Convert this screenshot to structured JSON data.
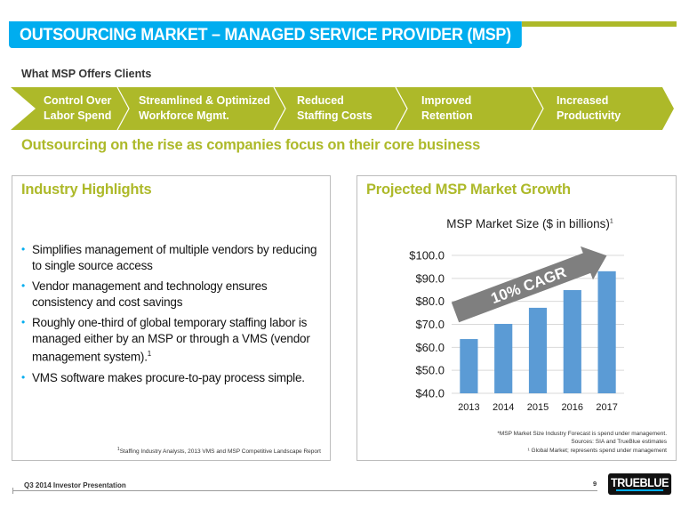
{
  "header": {
    "title": "OUTSOURCING MARKET – MANAGED SERVICE PROVIDER (MSP)"
  },
  "offers": {
    "label": "What MSP Offers Clients",
    "items": [
      {
        "line1": "Control Over",
        "line2": "Labor Spend"
      },
      {
        "line1": "Streamlined & Optimized",
        "line2": "Workforce Mgmt."
      },
      {
        "line1": "Reduced",
        "line2": "Staffing Costs"
      },
      {
        "line1": "Improved",
        "line2": "Retention"
      },
      {
        "line1": "Increased",
        "line2": "Productivity"
      }
    ]
  },
  "tagline": "Outsourcing on the rise as companies focus on their core business",
  "left_panel": {
    "title": "Industry Highlights",
    "bullets": [
      "Simplifies management of multiple vendors by reducing to single source access",
      "Vendor management and technology ensures consistency and cost savings",
      "Roughly one-third of global temporary staffing labor is managed either by an MSP or through a VMS (vendor management system).",
      "VMS software makes procure-to-pay process simple."
    ],
    "bullet3_superscript": "1",
    "footnote_marker": "1",
    "footnote": "Staffing Industry Analysts, 2013 VMS and MSP Competitive Landscape Report"
  },
  "right_panel": {
    "title": "Projected MSP Market Growth",
    "footnotes": [
      "*MSP Market Size Industry Forecast is spend under management.",
      "Sources: SIA  and TrueBlue estimates",
      "¹ Global Market; represents spend under management"
    ]
  },
  "chart_data": {
    "type": "bar",
    "title": "MSP Market Size ($ in billions)",
    "title_superscript": "1",
    "categories": [
      "2013",
      "2014",
      "2015",
      "2016",
      "2017"
    ],
    "values": [
      63.6,
      70.2,
      77.2,
      84.9,
      93.1
    ],
    "ylim": [
      40,
      100
    ],
    "yticks": [
      40,
      50,
      60,
      70,
      80,
      90,
      100
    ],
    "ytick_labels": [
      "$40.0",
      "$50.0",
      "$60.0",
      "$70.0",
      "$80.0",
      "$90.0",
      "$100.0"
    ],
    "xlabel": "",
    "ylabel": "",
    "grid": true,
    "bar_color": "#5b9bd5",
    "annotation": "10% CAGR",
    "annotation_color": "#7f7f7f"
  },
  "footer": {
    "text": "Q3 2014 Investor Presentation",
    "page": "9",
    "logo": "TRUEBLUE"
  },
  "colors": {
    "header_blue": "#00adef",
    "accent_green": "#adb929",
    "bar_blue": "#5b9bd5"
  }
}
